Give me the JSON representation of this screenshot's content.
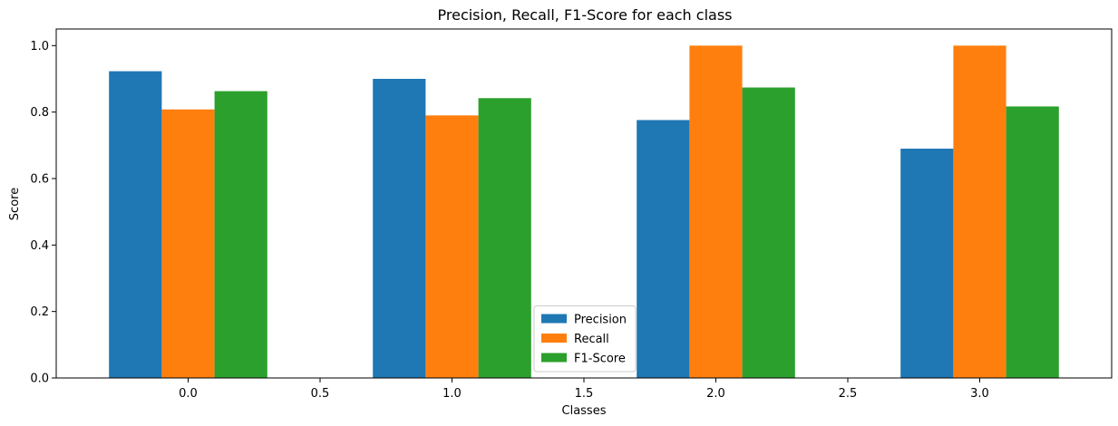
{
  "chart_data": {
    "type": "bar",
    "title": "Precision, Recall, F1-Score for each class",
    "xlabel": "Classes",
    "ylabel": "Score",
    "xlim": [
      -0.5,
      3.5
    ],
    "ylim": [
      0,
      1.05
    ],
    "xticks": [
      "0.0",
      "0.5",
      "1.0",
      "1.5",
      "2.0",
      "2.5",
      "3.0"
    ],
    "yticks": [
      "0.0",
      "0.2",
      "0.4",
      "0.6",
      "0.8",
      "1.0"
    ],
    "x": [
      0,
      1,
      2,
      3
    ],
    "bar_width": 0.2,
    "series": [
      {
        "name": "Precision",
        "color": "#1f77b4",
        "values": [
          0.923,
          0.9,
          0.776,
          0.69
        ]
      },
      {
        "name": "Recall",
        "color": "#ff7f0e",
        "values": [
          0.808,
          0.79,
          1.0,
          1.0
        ]
      },
      {
        "name": "F1-Score",
        "color": "#2ca02c",
        "values": [
          0.863,
          0.842,
          0.874,
          0.817
        ]
      }
    ],
    "legend": {
      "position": "lower center"
    },
    "grid": false
  }
}
